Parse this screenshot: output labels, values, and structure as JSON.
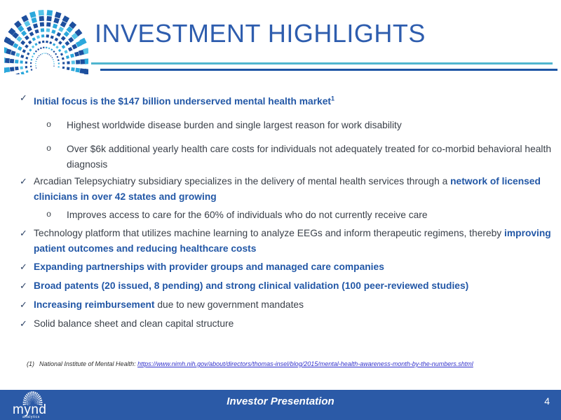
{
  "title": "INVESTMENT HIGHLIGHTS",
  "icons": {
    "check": "✓",
    "circle": "o"
  },
  "colors": {
    "title_blue": "#2E5DAE",
    "accent_blue": "#2257A6",
    "body_text": "#3A4049",
    "check_color": "#2E4468",
    "teal_line": "#4FB5CF",
    "dark_line": "#1D55A5",
    "footer_bar": "#2B5AA7",
    "link": "#3232CC",
    "footnote_text": "#2F2F2F"
  },
  "content": {
    "b1": {
      "text": "Initial focus is the $147 billion underserved mental health market",
      "sup": "1"
    },
    "s1": {
      "text": "Highest worldwide disease burden and single largest reason for work disability"
    },
    "s2": {
      "text": "Over $6k additional yearly health care costs for individuals not adequately treated for co-morbid behavioral health diagnosis"
    },
    "b2": {
      "plain": "Arcadian Telepsychiatry subsidiary specializes in the delivery of mental health services through a ",
      "blue": "network of licensed clinicians in over 42 states and growing"
    },
    "s3": {
      "text": "Improves access to care for the 60% of individuals who do not currently receive care"
    },
    "b3": {
      "plain": "Technology platform that utilizes machine learning to analyze EEGs and inform therapeutic regimens, thereby ",
      "blue": "improving patient outcomes and reducing healthcare costs"
    },
    "b4": {
      "blue": "Expanding partnerships with provider groups and managed care companies"
    },
    "b5": {
      "blue": "Broad patents (20 issued, 8 pending) and strong clinical validation (100 peer-reviewed studies)"
    },
    "b6": {
      "blue": "Increasing reimbursement",
      "plain": " due to new government mandates"
    },
    "b7": {
      "plain": "Solid balance sheet and clean capital structure"
    }
  },
  "footnote": {
    "label": "(1)",
    "prefix": "National Institute of Mental Health: ",
    "link": "https://www.nimh.nih.gov/about/directors/thomas-insel/blog/2015/mental-health-awareness-month-by-the-numbers.shtml"
  },
  "footer": {
    "presentation": "Investor Presentation",
    "page": "4",
    "logo": "mynd",
    "logo_sub": "analytics"
  }
}
